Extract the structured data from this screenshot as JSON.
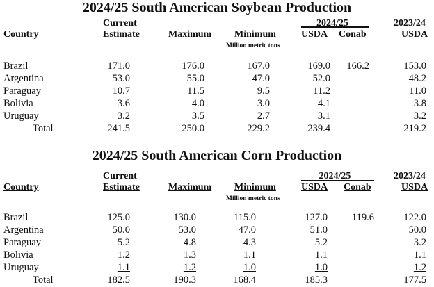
{
  "tables": [
    {
      "title": "2024/25 South American Soybean Production",
      "headers": {
        "country": "Country",
        "current_top": "Current",
        "current": "Estimate",
        "maximum": "Maximum",
        "minimum": "Minimum",
        "group_2425": "2024/25",
        "usda": "USDA",
        "conab": "Conab",
        "year_2324": "2023/24",
        "usda_2324": "USDA",
        "units": "Million metric tons"
      },
      "rows": [
        {
          "country": "Brazil",
          "current": "171.0",
          "maximum": "176.0",
          "minimum": "167.0",
          "usda": "169.0",
          "conab": "166.2",
          "usda_2324": "153.0"
        },
        {
          "country": "Argentina",
          "current": "53.0",
          "maximum": "55.0",
          "minimum": "47.0",
          "usda": "52.0",
          "conab": "",
          "usda_2324": "48.2"
        },
        {
          "country": "Paraguay",
          "current": "10.7",
          "maximum": "11.5",
          "minimum": "9.5",
          "usda": "11.2",
          "conab": "",
          "usda_2324": "11.0"
        },
        {
          "country": "Bolivia",
          "current": "3.6",
          "maximum": "4.0",
          "minimum": "3.0",
          "usda": "4.1",
          "conab": "",
          "usda_2324": "3.8"
        },
        {
          "country": "Uruguay",
          "current": "3.2",
          "maximum": "3.5",
          "minimum": "2.7",
          "usda": "3.1",
          "conab": "",
          "usda_2324": "3.2"
        },
        {
          "country": "Total",
          "current": "241.5",
          "maximum": "250.0",
          "minimum": "229.2",
          "usda": "239.4",
          "conab": "",
          "usda_2324": "219.2"
        }
      ]
    },
    {
      "title": "2024/25 South American Corn Production",
      "headers": {
        "country": "Country",
        "current_top": "Current",
        "current": "Estimate",
        "maximum": "Maximum",
        "minimum": "Minimum",
        "group_2425": "2024/25",
        "usda": "USDA",
        "conab": "Conab",
        "year_2324": "2023/24",
        "usda_2324": "USDA",
        "units": "Million metric tons"
      },
      "rows": [
        {
          "country": "Brazil",
          "current": "125.0",
          "maximum": "130.0",
          "minimum": "115.0",
          "usda": "127.0",
          "conab": "119.6",
          "usda_2324": "122.0"
        },
        {
          "country": "Argentina",
          "current": "50.0",
          "maximum": "53.0",
          "minimum": "47.0",
          "usda": "51.0",
          "conab": "",
          "usda_2324": "50.0"
        },
        {
          "country": "Paraguay",
          "current": "5.2",
          "maximum": "4.8",
          "minimum": "4.3",
          "usda": "5.2",
          "conab": "",
          "usda_2324": "3.2"
        },
        {
          "country": "Bolivia",
          "current": "1.2",
          "maximum": "1.3",
          "minimum": "1.1",
          "usda": "1.1",
          "conab": "",
          "usda_2324": "1.1"
        },
        {
          "country": "Uruguay",
          "current": "1.1",
          "maximum": "1.2",
          "minimum": "1.0",
          "usda": "1.0",
          "conab": "",
          "usda_2324": "1.2"
        },
        {
          "country": "Total",
          "current": "182.5",
          "maximum": "190.3",
          "minimum": "168.4",
          "usda": "185.3",
          "conab": "",
          "usda_2324": "177.5"
        }
      ]
    }
  ]
}
